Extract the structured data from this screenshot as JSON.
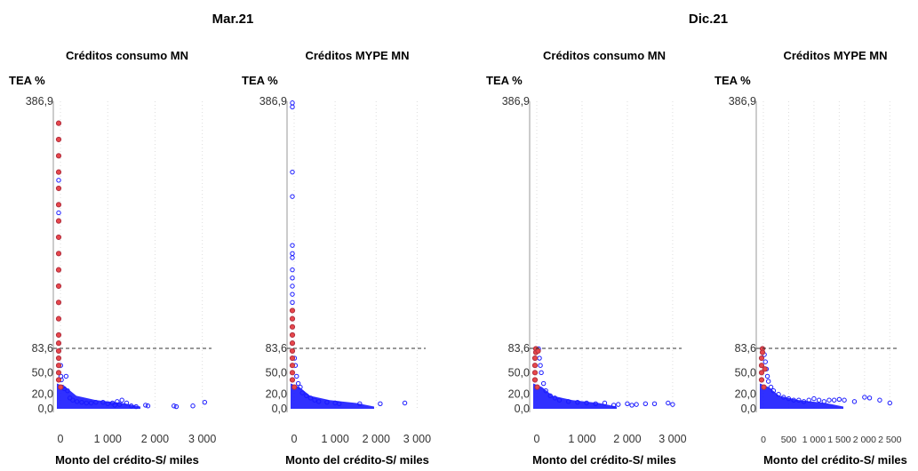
{
  "groups": [
    {
      "title": "Mar.21"
    },
    {
      "title": "Dic.21"
    }
  ],
  "colors": {
    "blue": "#1a1aff",
    "red": "#e8474b",
    "axis": "#999999",
    "grid": "#dddddd",
    "ref": "#333333"
  },
  "chart_data": [
    {
      "type": "scatter",
      "group": "Mar.21",
      "title": "Créditos consumo MN",
      "ylabel": "TEA %",
      "xlabel": "Monto del crédito-S/ miles",
      "xlim": [
        0,
        3100
      ],
      "ylim": [
        0,
        386.9
      ],
      "xticks": [
        0,
        1000,
        2000,
        3000
      ],
      "xtick_labels": [
        "0",
        "1 000",
        "2 000",
        "3 000"
      ],
      "yticks": [
        0,
        20,
        50,
        83.6,
        386.9
      ],
      "ytick_labels": [
        "0,0",
        "20,0",
        "50,0",
        "83,6",
        "386,9"
      ],
      "reference_line": 83.6,
      "grid": "vertical-dotted",
      "series": [
        {
          "color": "blue",
          "points": [
            [
              0,
              320
            ],
            [
              0,
              290
            ],
            [
              0,
              250
            ],
            [
              0,
              200
            ],
            [
              0,
              160
            ],
            [
              0,
              120
            ],
            [
              5,
              60
            ],
            [
              10,
              45
            ],
            [
              20,
              40
            ],
            [
              40,
              30
            ],
            [
              80,
              28
            ],
            [
              120,
              45
            ],
            [
              150,
              25
            ],
            [
              200,
              15
            ],
            [
              260,
              12
            ],
            [
              350,
              10
            ],
            [
              450,
              9
            ],
            [
              550,
              8
            ],
            [
              650,
              8
            ],
            [
              750,
              9
            ],
            [
              900,
              9
            ],
            [
              1000,
              7
            ],
            [
              1100,
              8
            ],
            [
              1150,
              5
            ],
            [
              1200,
              10
            ],
            [
              1250,
              6
            ],
            [
              1300,
              12
            ],
            [
              1400,
              8
            ],
            [
              1500,
              4
            ],
            [
              1600,
              3
            ],
            [
              1800,
              5
            ],
            [
              1850,
              4
            ],
            [
              2400,
              4
            ],
            [
              2450,
              3
            ],
            [
              2800,
              4
            ],
            [
              3050,
              9
            ]
          ]
        },
        {
          "color": "red",
          "points": [
            [
              0,
              360
            ],
            [
              0,
              340
            ],
            [
              0,
              320
            ],
            [
              0,
              300
            ],
            [
              0,
              280
            ],
            [
              0,
              260
            ],
            [
              0,
              240
            ],
            [
              0,
              220
            ],
            [
              0,
              200
            ],
            [
              0,
              180
            ],
            [
              0,
              160
            ],
            [
              0,
              140
            ],
            [
              0,
              120
            ],
            [
              0,
              100
            ],
            [
              0,
              90
            ],
            [
              0,
              80
            ],
            [
              0,
              70
            ],
            [
              0,
              60
            ],
            [
              0,
              50
            ],
            [
              0,
              40
            ],
            [
              5,
              30
            ]
          ]
        }
      ]
    },
    {
      "type": "scatter",
      "group": "Mar.21",
      "title": "Créditos MYPE MN",
      "ylabel": "TEA %",
      "xlabel": "Monto del crédito-S/ miles",
      "xlim": [
        0,
        3100
      ],
      "ylim": [
        0,
        386.9
      ],
      "xticks": [
        0,
        1000,
        2000,
        3000
      ],
      "xtick_labels": [
        "0",
        "1 000",
        "2 000",
        "3 000"
      ],
      "yticks": [
        0,
        20,
        50,
        83.6,
        386.9
      ],
      "ytick_labels": [
        "0,0",
        "20,0",
        "50,0",
        "83,6",
        "386,9"
      ],
      "reference_line": 83.6,
      "grid": "vertical-dotted",
      "series": [
        {
          "color": "blue",
          "points": [
            [
              0,
              385
            ],
            [
              0,
              380
            ],
            [
              0,
              300
            ],
            [
              0,
              270
            ],
            [
              0,
              210
            ],
            [
              0,
              200
            ],
            [
              0,
              195
            ],
            [
              0,
              180
            ],
            [
              0,
              170
            ],
            [
              0,
              160
            ],
            [
              0,
              150
            ],
            [
              0,
              140
            ],
            [
              0,
              130
            ],
            [
              0,
              110
            ],
            [
              10,
              70
            ],
            [
              30,
              60
            ],
            [
              60,
              45
            ],
            [
              100,
              35
            ],
            [
              150,
              30
            ],
            [
              200,
              22
            ],
            [
              300,
              18
            ],
            [
              400,
              15
            ],
            [
              500,
              12
            ],
            [
              600,
              10
            ],
            [
              800,
              9
            ],
            [
              1000,
              8
            ],
            [
              1100,
              7
            ],
            [
              1600,
              7
            ],
            [
              2100,
              7
            ],
            [
              2700,
              8
            ]
          ]
        },
        {
          "color": "red",
          "points": [
            [
              0,
              130
            ],
            [
              0,
              120
            ],
            [
              0,
              110
            ],
            [
              0,
              100
            ],
            [
              0,
              90
            ],
            [
              0,
              80
            ],
            [
              0,
              70
            ],
            [
              0,
              60
            ],
            [
              0,
              50
            ],
            [
              0,
              40
            ],
            [
              5,
              30
            ]
          ]
        }
      ]
    },
    {
      "type": "scatter",
      "group": "Dic.21",
      "title": "Créditos consumo MN",
      "ylabel": "TEA %",
      "xlabel": "Monto del crédito-S/ miles",
      "xlim": [
        0,
        3100
      ],
      "ylim": [
        0,
        386.9
      ],
      "xticks": [
        0,
        1000,
        2000,
        3000
      ],
      "xtick_labels": [
        "0",
        "1 000",
        "2 000",
        "3 000"
      ],
      "yticks": [
        0,
        20,
        50,
        83.6,
        386.9
      ],
      "ytick_labels": [
        "0,0",
        "20,0",
        "50,0",
        "83,6",
        "386,9"
      ],
      "reference_line": 83.6,
      "grid": "vertical-dotted",
      "series": [
        {
          "color": "blue",
          "points": [
            [
              0,
              83
            ],
            [
              20,
              80
            ],
            [
              40,
              83
            ],
            [
              60,
              70
            ],
            [
              80,
              60
            ],
            [
              100,
              50
            ],
            [
              150,
              35
            ],
            [
              200,
              25
            ],
            [
              300,
              18
            ],
            [
              400,
              15
            ],
            [
              500,
              12
            ],
            [
              700,
              10
            ],
            [
              900,
              9
            ],
            [
              1100,
              8
            ],
            [
              1300,
              7
            ],
            [
              1500,
              8
            ],
            [
              1700,
              5
            ],
            [
              1800,
              6
            ],
            [
              2000,
              7
            ],
            [
              2100,
              5
            ],
            [
              2200,
              6
            ],
            [
              2400,
              7
            ],
            [
              2600,
              7
            ],
            [
              2900,
              8
            ],
            [
              3000,
              6
            ]
          ]
        },
        {
          "color": "red",
          "points": [
            [
              0,
              83
            ],
            [
              0,
              78
            ],
            [
              0,
              70
            ],
            [
              0,
              60
            ],
            [
              0,
              50
            ],
            [
              0,
              40
            ],
            [
              10,
              30
            ],
            [
              30,
              80
            ]
          ]
        }
      ]
    },
    {
      "type": "scatter",
      "group": "Dic.21",
      "title": "Créditos MYPE MN",
      "ylabel": "TEA %",
      "xlabel": "Monto del crédito-S/ miles",
      "xlim": [
        0,
        2600
      ],
      "ylim": [
        0,
        386.9
      ],
      "xticks": [
        0,
        500,
        1000,
        1500,
        2000,
        2500
      ],
      "xtick_labels": [
        "0",
        "500",
        "1 000",
        "1 500",
        "2 000",
        "2 500"
      ],
      "yticks": [
        0,
        20,
        50,
        83.6,
        386.9
      ],
      "ytick_labels": [
        "0,0",
        "20,0",
        "50,0",
        "83,6",
        "386,9"
      ],
      "reference_line": 83.6,
      "grid": "vertical-dotted",
      "series": [
        {
          "color": "blue",
          "points": [
            [
              0,
              83
            ],
            [
              20,
              75
            ],
            [
              40,
              65
            ],
            [
              60,
              55
            ],
            [
              80,
              45
            ],
            [
              100,
              38
            ],
            [
              150,
              30
            ],
            [
              200,
              25
            ],
            [
              300,
              20
            ],
            [
              400,
              16
            ],
            [
              500,
              14
            ],
            [
              600,
              12
            ],
            [
              700,
              12
            ],
            [
              800,
              10
            ],
            [
              900,
              12
            ],
            [
              1000,
              14
            ],
            [
              1100,
              12
            ],
            [
              1200,
              10
            ],
            [
              1300,
              12
            ],
            [
              1400,
              12
            ],
            [
              1500,
              13
            ],
            [
              1600,
              12
            ],
            [
              1800,
              10
            ],
            [
              2000,
              16
            ],
            [
              2100,
              15
            ],
            [
              2300,
              12
            ],
            [
              2500,
              8
            ]
          ]
        },
        {
          "color": "red",
          "points": [
            [
              0,
              83
            ],
            [
              0,
              78
            ],
            [
              0,
              70
            ],
            [
              0,
              60
            ],
            [
              0,
              50
            ],
            [
              0,
              40
            ],
            [
              10,
              30
            ],
            [
              30,
              55
            ]
          ]
        }
      ]
    }
  ]
}
